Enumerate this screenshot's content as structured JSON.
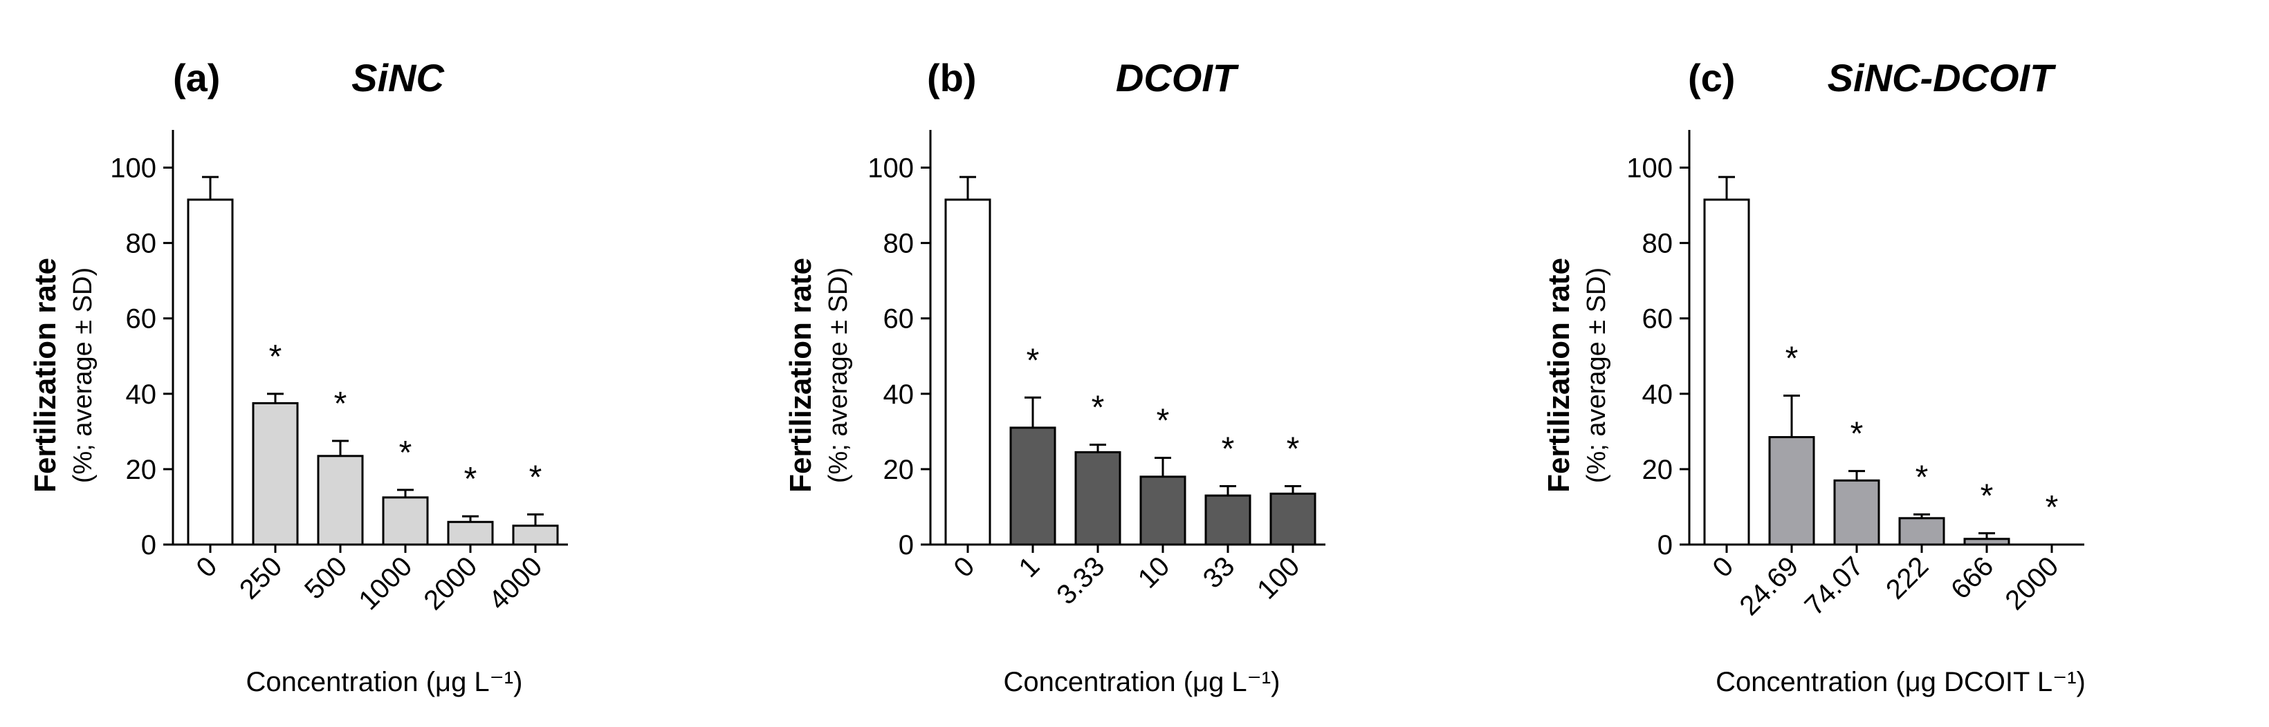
{
  "chart_data": [
    {
      "type": "bar",
      "panel_label": "(a)",
      "title": "SiNC",
      "ylabel": "Fertilization rate",
      "ylabel_sub": "(%; average ± SD)",
      "xlabel": "Concentration (μg L⁻¹)",
      "categories": [
        "0",
        "250",
        "500",
        "1000",
        "2000",
        "4000"
      ],
      "values": [
        91.5,
        37.5,
        23.5,
        12.5,
        6.0,
        5.0
      ],
      "errors": [
        6.0,
        2.5,
        4.0,
        2.0,
        1.5,
        3.0
      ],
      "significance": [
        "",
        "*",
        "*",
        "*",
        "*",
        "*"
      ],
      "bar_colors": [
        "#ffffff",
        "#d6d6d6",
        "#d6d6d6",
        "#d6d6d6",
        "#d6d6d6",
        "#d6d6d6"
      ],
      "ylim": [
        0,
        110
      ],
      "yticks": [
        0,
        20,
        40,
        60,
        80,
        100
      ],
      "grid": false
    },
    {
      "type": "bar",
      "panel_label": "(b)",
      "title": "DCOIT",
      "ylabel": "Fertilization rate",
      "ylabel_sub": "(%; average ± SD)",
      "xlabel": "Concentration (μg L⁻¹)",
      "categories": [
        "0",
        "1",
        "3.33",
        "10",
        "33",
        "100"
      ],
      "values": [
        91.5,
        31.0,
        24.5,
        18.0,
        13.0,
        13.5
      ],
      "errors": [
        6.0,
        8.0,
        2.0,
        5.0,
        2.5,
        2.0
      ],
      "significance": [
        "",
        "*",
        "*",
        "*",
        "*",
        "*"
      ],
      "bar_colors": [
        "#ffffff",
        "#5a5a5a",
        "#5a5a5a",
        "#5a5a5a",
        "#5a5a5a",
        "#5a5a5a"
      ],
      "ylim": [
        0,
        110
      ],
      "yticks": [
        0,
        20,
        40,
        60,
        80,
        100
      ],
      "grid": false
    },
    {
      "type": "bar",
      "panel_label": "(c)",
      "title": "SiNC-DCOIT",
      "ylabel": "Fertilization rate",
      "ylabel_sub": "(%; average ± SD)",
      "xlabel": "Concentration (μg DCOIT L⁻¹)",
      "categories": [
        "0",
        "24.69",
        "74.07",
        "222",
        "666",
        "2000"
      ],
      "values": [
        91.5,
        28.5,
        17.0,
        7.0,
        1.5,
        0
      ],
      "errors": [
        6.0,
        11.0,
        2.5,
        1.0,
        1.5,
        0
      ],
      "significance": [
        "",
        "*",
        "*",
        "*",
        "*",
        "*"
      ],
      "bar_colors": [
        "#ffffff",
        "#a3a3a8",
        "#a3a3a8",
        "#a3a3a8",
        "#a3a3a8",
        "#a3a3a8"
      ],
      "ylim": [
        0,
        110
      ],
      "yticks": [
        0,
        20,
        40,
        60,
        80,
        100
      ],
      "grid": false
    }
  ]
}
